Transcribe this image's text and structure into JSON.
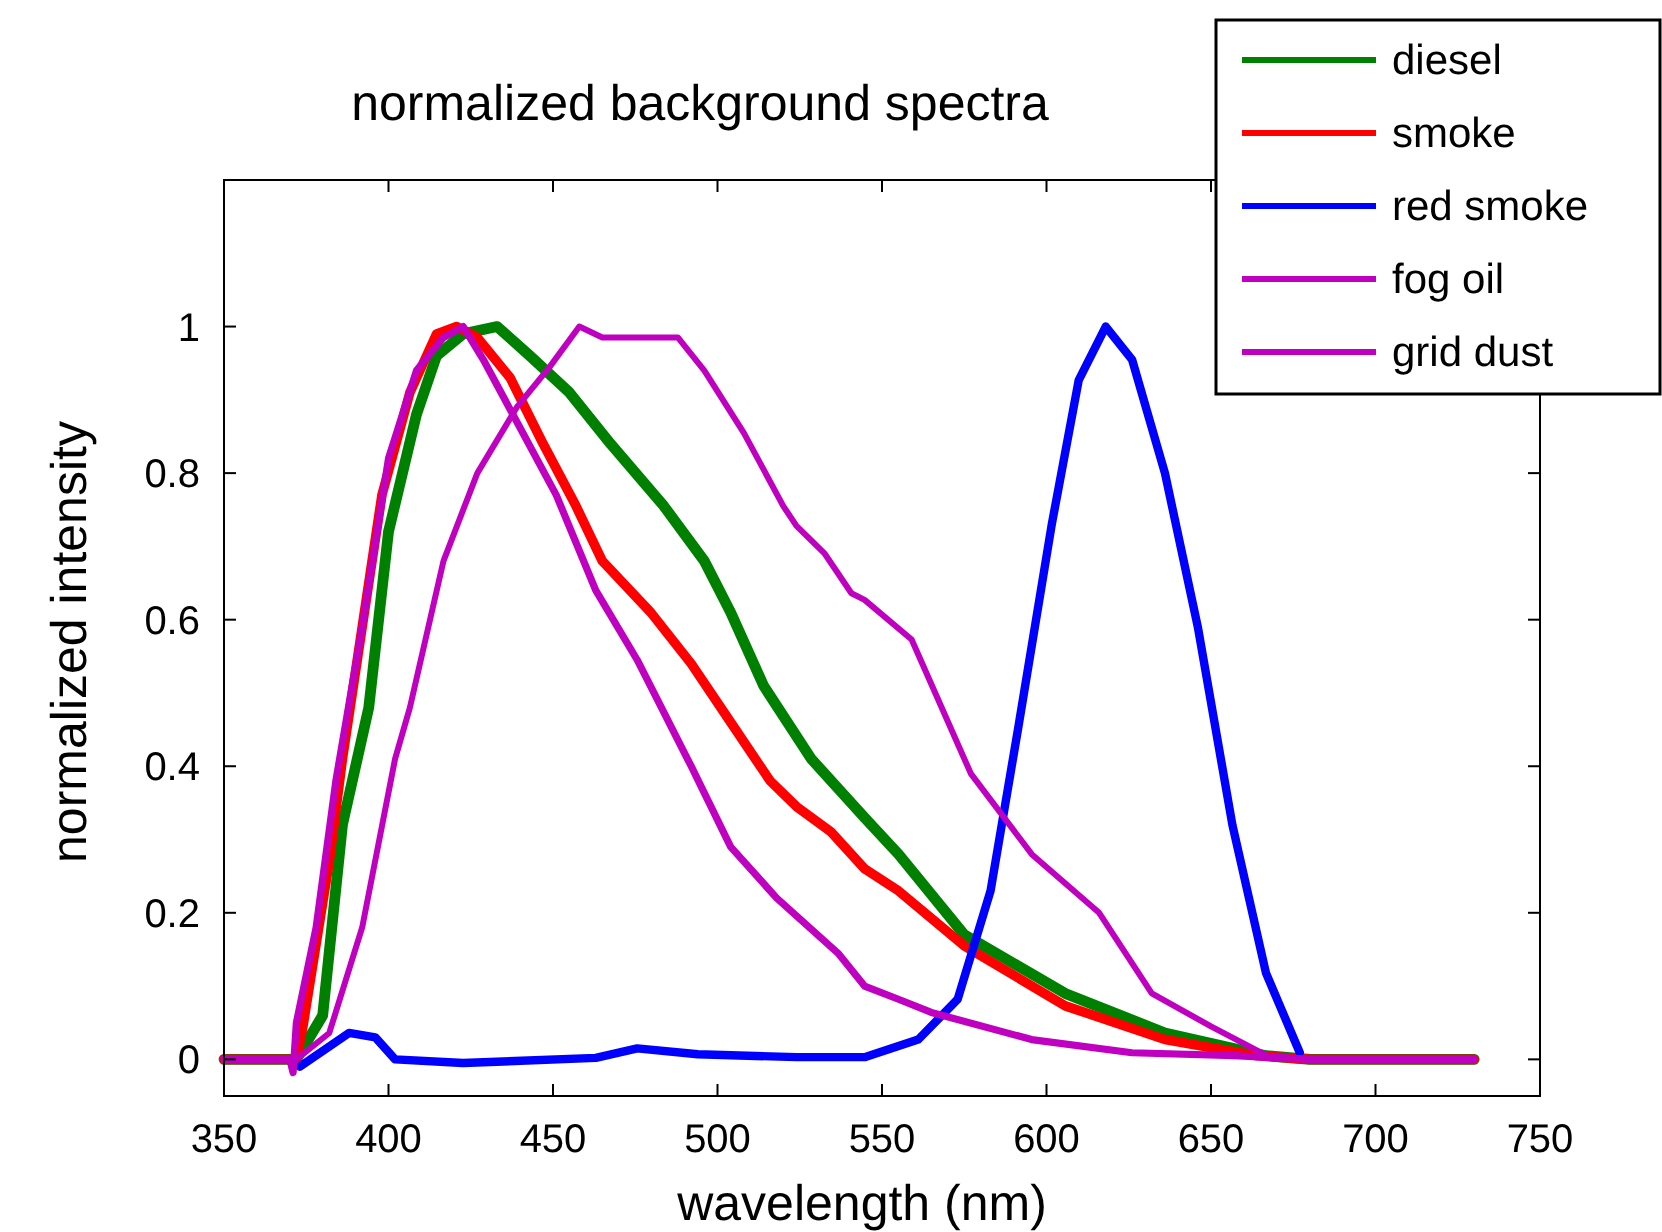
{
  "chart_data": {
    "type": "line",
    "title": "normalized background spectra",
    "xlabel": "wavelength (nm)",
    "ylabel": "normalized intensity",
    "xlim": [
      350,
      750
    ],
    "ylim": [
      -0.05,
      1.2
    ],
    "xticks": [
      350,
      400,
      450,
      500,
      550,
      600,
      650,
      700,
      750
    ],
    "yticks": [
      0,
      0.2,
      0.4,
      0.6,
      0.8,
      1
    ],
    "grid": false,
    "legend": "top right",
    "line_style": "solid",
    "marker": "none",
    "series": [
      {
        "name": "diesel",
        "color": "#008000",
        "x": [
          350,
          372,
          380,
          386,
          394,
          400,
          408.5,
          414.6,
          422.7,
          433,
          443,
          455,
          467.5,
          483.7,
          496,
          504,
          514,
          528.5,
          544.7,
          555,
          575,
          605.7,
          636,
          666.7,
          680,
          730
        ],
        "values": [
          0,
          0,
          0.06,
          0.32,
          0.48,
          0.72,
          0.88,
          0.96,
          0.99,
          1,
          0.96,
          0.91,
          0.84,
          0.755,
          0.68,
          0.61,
          0.51,
          0.41,
          0.33,
          0.28,
          0.17,
          0.09,
          0.036,
          0.005,
          0,
          0
        ]
      },
      {
        "name": "smoke",
        "color": "#ff0000",
        "x": [
          350,
          372,
          374,
          382,
          386,
          392,
          398,
          406.5,
          414.6,
          420.7,
          427,
          437,
          447,
          457,
          465,
          479.7,
          492,
          504,
          516,
          524,
          534.6,
          544.7,
          555,
          575,
          605.7,
          636,
          664,
          680,
          730
        ],
        "values": [
          0,
          0,
          0.045,
          0.27,
          0.41,
          0.59,
          0.77,
          0.91,
          0.99,
          1,
          0.985,
          0.93,
          0.84,
          0.755,
          0.68,
          0.61,
          0.54,
          0.46,
          0.38,
          0.345,
          0.31,
          0.26,
          0.23,
          0.155,
          0.073,
          0.027,
          0.005,
          0,
          0
        ]
      },
      {
        "name": "red smoke",
        "color": "#0000ff",
        "x": [
          373,
          388,
          396,
          402,
          422.7,
          463,
          475.6,
          494,
          524,
          544.7,
          561,
          573,
          583,
          591.5,
          601.6,
          609.8,
          618,
          626,
          636,
          646,
          656.5,
          666.7,
          677
        ],
        "values": [
          -0.01,
          0.036,
          0.03,
          0,
          -0.005,
          0.002,
          0.015,
          0.007,
          0.003,
          0.003,
          0.027,
          0.082,
          0.23,
          0.455,
          0.73,
          0.927,
          1,
          0.955,
          0.8,
          0.59,
          0.32,
          0.118,
          0.009
        ]
      },
      {
        "name": "fog oil",
        "color": "#c000c0",
        "x": [
          350,
          370,
          371,
          372,
          378,
          384,
          392,
          400,
          408.5,
          416.7,
          422.7,
          428.8,
          439,
          451,
          463,
          475.6,
          492,
          504,
          518,
          536.6,
          544.7,
          555,
          565,
          595.5,
          626,
          657,
          680,
          730
        ],
        "values": [
          0,
          0,
          -0.018,
          0.05,
          0.18,
          0.38,
          0.59,
          0.82,
          0.94,
          0.985,
          1,
          0.955,
          0.87,
          0.77,
          0.64,
          0.545,
          0.4,
          0.29,
          0.22,
          0.145,
          0.1,
          0.082,
          0.064,
          0.027,
          0.009,
          0.005,
          0,
          0
        ]
      },
      {
        "name": "grid dust",
        "color": "#c000c0",
        "x": [
          350,
          372,
          382,
          392,
          402,
          406.5,
          416.7,
          427,
          439,
          449,
          458,
          465,
          475.6,
          488,
          496,
          508,
          520,
          524,
          532.6,
          540.7,
          544.7,
          559,
          577,
          595.5,
          616,
          632,
          650,
          667,
          680,
          730
        ],
        "values": [
          0,
          0,
          0.036,
          0.18,
          0.41,
          0.48,
          0.68,
          0.8,
          0.89,
          0.945,
          1,
          0.985,
          0.985,
          0.985,
          0.94,
          0.855,
          0.755,
          0.728,
          0.69,
          0.636,
          0.627,
          0.573,
          0.39,
          0.28,
          0.2,
          0.09,
          0.045,
          0.005,
          0,
          0
        ]
      }
    ]
  }
}
